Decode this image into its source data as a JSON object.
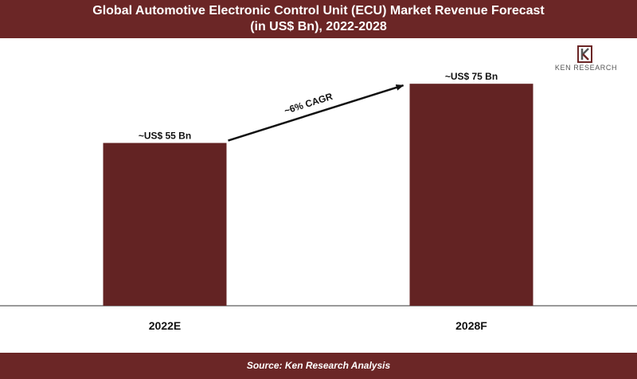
{
  "header": {
    "title_line1": "Global Automotive Electronic Control Unit (ECU) Market Revenue Forecast",
    "title_line2": "(in US$ Bn), 2022-2028"
  },
  "footer": {
    "source": "Source: Ken Research Analysis"
  },
  "logo": {
    "text": "KEN RESEARCH"
  },
  "colors": {
    "bar": "#632323",
    "banner": "#6b2626",
    "axis": "#333333"
  },
  "chart_data": {
    "type": "bar",
    "title": "Global Automotive Electronic Control Unit (ECU) Market Revenue Forecast (in US$ Bn), 2022-2028",
    "categories": [
      "2022E",
      "2028F"
    ],
    "values": [
      55,
      75
    ],
    "data_labels": [
      "~US$ 55 Bn",
      "~US$ 75 Bn"
    ],
    "annotations": [
      "~6% CAGR"
    ],
    "xlabel": "",
    "ylabel": "",
    "ylim": [
      0,
      85
    ],
    "grid": false,
    "legend": "none"
  }
}
